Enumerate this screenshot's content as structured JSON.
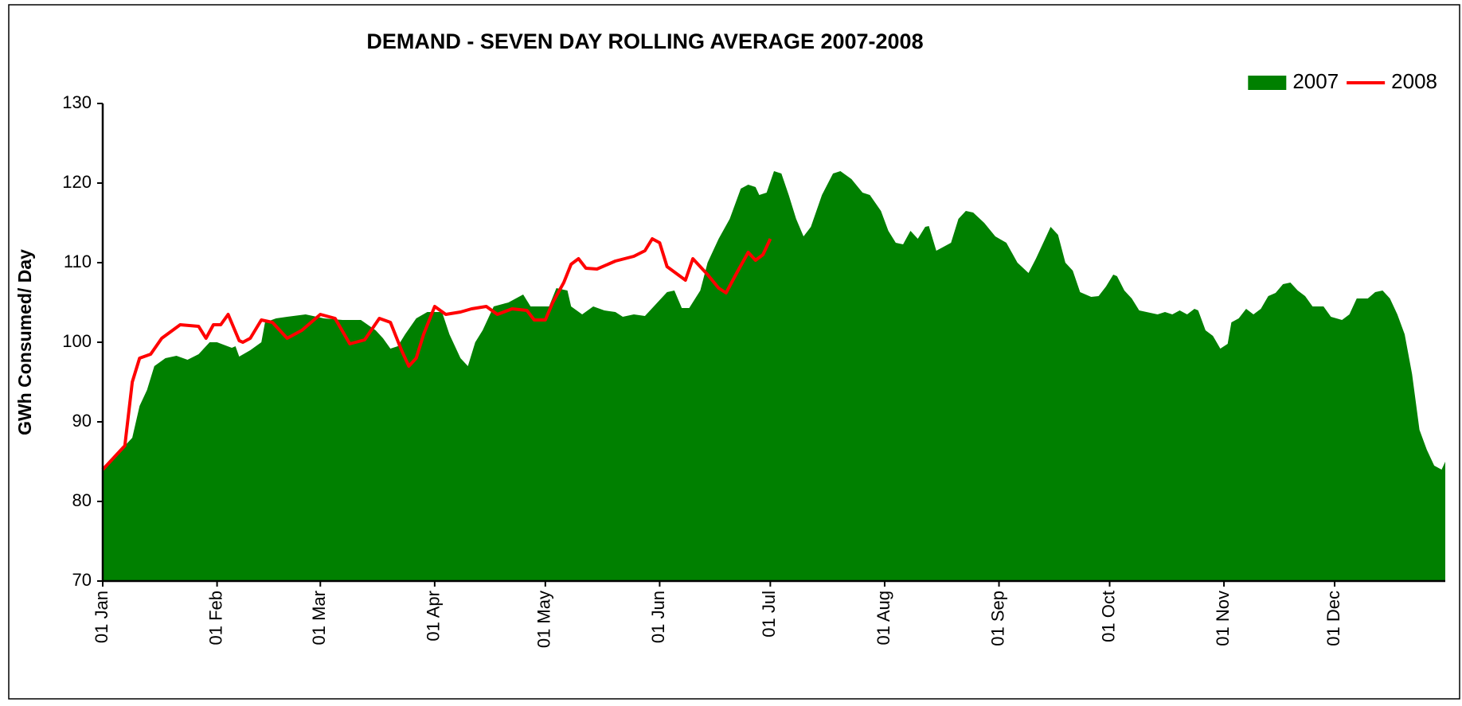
{
  "chart_data": {
    "type": "area-line",
    "title": "DEMAND - SEVEN DAY ROLLING AVERAGE 2007-2008",
    "y_label": "GWh Consumed/ Day",
    "xlim": [
      0,
      364
    ],
    "xticks": [
      {
        "value": 0,
        "label": "01 Jan"
      },
      {
        "value": 31,
        "label": "01 Feb"
      },
      {
        "value": 59,
        "label": "01 Mar"
      },
      {
        "value": 90,
        "label": "01 Apr"
      },
      {
        "value": 120,
        "label": "01 May"
      },
      {
        "value": 151,
        "label": "01 Jun"
      },
      {
        "value": 181,
        "label": "01 Jul"
      },
      {
        "value": 212,
        "label": "01 Aug"
      },
      {
        "value": 243,
        "label": "01 Sep"
      },
      {
        "value": 273,
        "label": "01 Oct"
      },
      {
        "value": 304,
        "label": "01 Nov"
      },
      {
        "value": 334,
        "label": "01 Dec"
      }
    ],
    "ylim": [
      70,
      130
    ],
    "yticks": [
      70,
      80,
      90,
      100,
      110,
      120,
      130
    ],
    "legend": "top-right",
    "series": [
      {
        "name": "2007",
        "kind": "area",
        "color": "#008000",
        "x": [
          0,
          3,
          6,
          8,
          10,
          12,
          14,
          17,
          20,
          23,
          26,
          29,
          31,
          35,
          36,
          37,
          40,
          43,
          44,
          47,
          50,
          55,
          60,
          65,
          70,
          74,
          76,
          78,
          80,
          82,
          85,
          88,
          92,
          94,
          97,
          99,
          101,
          103,
          106,
          110,
          114,
          116,
          119,
          121,
          123,
          126,
          127,
          130,
          133,
          136,
          139,
          141,
          144,
          147,
          150,
          153,
          155,
          157,
          159,
          162,
          164,
          167,
          170,
          173,
          175,
          177,
          178,
          180,
          182,
          184,
          186,
          188,
          190,
          192,
          195,
          198,
          200,
          203,
          206,
          208,
          211,
          213,
          215,
          217,
          219,
          221,
          223,
          224,
          226,
          228,
          230,
          232,
          234,
          236,
          239,
          242,
          245,
          248,
          251,
          253,
          256,
          257,
          259,
          261,
          263,
          265,
          268,
          270,
          272,
          274,
          275,
          277,
          279,
          281,
          283,
          286,
          288,
          290,
          292,
          294,
          296,
          297,
          299,
          301,
          303,
          305,
          306,
          308,
          310,
          312,
          314,
          316,
          318,
          320,
          322,
          324,
          326,
          328,
          331,
          333,
          336,
          338,
          340,
          343,
          345,
          347,
          349,
          351,
          353,
          355,
          357,
          359,
          361,
          363,
          364
        ],
        "values": [
          84,
          85.5,
          87,
          88,
          92,
          94,
          97,
          98,
          98.3,
          97.8,
          98.5,
          100,
          100,
          99.3,
          99.5,
          98.2,
          99,
          100,
          102.5,
          103,
          103.2,
          103.5,
          103,
          102.8,
          102.8,
          101.5,
          100.5,
          99.2,
          99.5,
          101,
          103,
          103.8,
          103.8,
          101,
          98,
          97,
          100,
          101.5,
          104.5,
          105,
          106,
          104.5,
          104.5,
          104.5,
          106.8,
          106.5,
          104.5,
          103.5,
          104.5,
          104,
          103.8,
          103.2,
          103.5,
          103.3,
          104.8,
          106.3,
          106.5,
          104.3,
          104.3,
          106.5,
          110,
          113,
          115.5,
          119.3,
          119.8,
          119.5,
          118.5,
          118.8,
          121.5,
          121.2,
          118.5,
          115.5,
          113.3,
          114.5,
          118.5,
          121.2,
          121.5,
          120.5,
          118.8,
          118.5,
          116.5,
          114,
          112.5,
          112.3,
          114,
          113,
          114.5,
          114.6,
          111.5,
          112,
          112.5,
          115.5,
          116.5,
          116.3,
          115,
          113.3,
          112.5,
          110,
          108.7,
          110.5,
          113.5,
          114.5,
          113.5,
          110,
          109,
          106.3,
          105.7,
          105.8,
          107,
          108.5,
          108.3,
          106.5,
          105.5,
          104,
          103.8,
          103.5,
          103.8,
          103.5,
          104,
          103.5,
          104.2,
          104,
          101.5,
          100.8,
          99.2,
          99.8,
          102.5,
          103,
          104.2,
          103.5,
          104.2,
          105.8,
          106.2,
          107.3,
          107.5,
          106.5,
          105.8,
          104.5,
          104.5,
          103.2,
          102.8,
          103.5,
          105.5,
          105.5,
          106.3,
          106.5,
          105.5,
          103.5,
          101,
          96,
          89,
          86.5,
          84.5,
          84,
          85
        ]
      },
      {
        "name": "2008",
        "kind": "line",
        "color": "#ff0000",
        "x": [
          0,
          3,
          6,
          8,
          10,
          13,
          16,
          21,
          26,
          28,
          30,
          32,
          34,
          37,
          38,
          40,
          43,
          46,
          50,
          54,
          59,
          63,
          67,
          71,
          75,
          78,
          81,
          83,
          85,
          87,
          90,
          93,
          97,
          100,
          104,
          107,
          111,
          115,
          117,
          120,
          122,
          125,
          127,
          129,
          131,
          134,
          139,
          144,
          147,
          149,
          151,
          153,
          158,
          160,
          164,
          167,
          169,
          172,
          175,
          177,
          179,
          181
        ],
        "values": [
          84,
          85.5,
          87,
          95,
          98,
          98.5,
          100.5,
          102.2,
          102,
          100.5,
          102.2,
          102.2,
          103.5,
          100.2,
          100,
          100.5,
          102.8,
          102.5,
          100.5,
          101.5,
          103.5,
          103,
          99.8,
          100.3,
          103,
          102.5,
          99,
          97,
          98,
          101,
          104.5,
          103.5,
          103.8,
          104.2,
          104.5,
          103.5,
          104.2,
          104,
          102.8,
          102.8,
          105,
          107.5,
          109.8,
          110.5,
          109.3,
          109.2,
          110.2,
          110.8,
          111.5,
          113,
          112.5,
          109.5,
          107.8,
          110.5,
          108.5,
          106.8,
          106.2,
          108.8,
          111.3,
          110.3,
          111,
          113
        ]
      }
    ]
  }
}
